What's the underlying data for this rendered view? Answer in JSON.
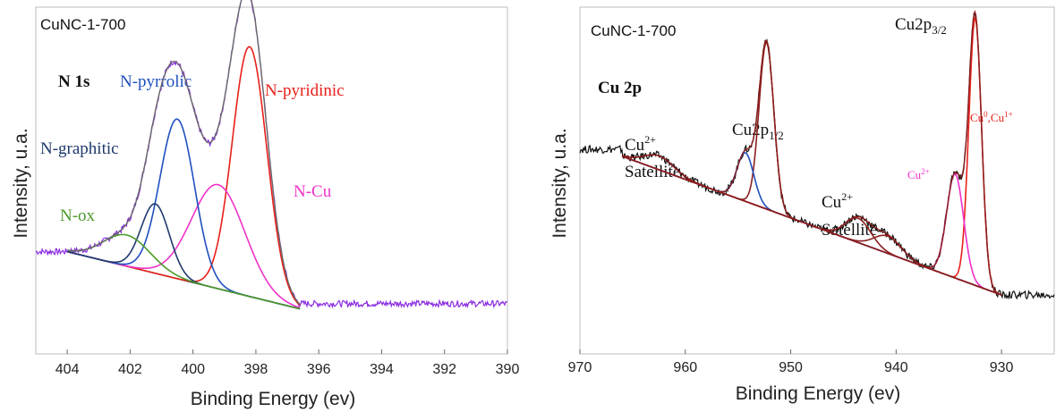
{
  "chart_data": [
    {
      "type": "line",
      "sample_label": "CuNC-1-700",
      "region_label": "N 1s",
      "xlabel": "Binding Energy (ev)",
      "ylabel": "Intensity, u.a.",
      "xlim": [
        405,
        390
      ],
      "ylim": [
        0,
        1
      ],
      "reversed_x": true,
      "grid": false,
      "x_ticks": [
        "404",
        "402",
        "400",
        "398",
        "396",
        "394",
        "392",
        "390"
      ],
      "peak_labels": [
        {
          "text": "N-pyrrolic",
          "color": "#1f4fbf"
        },
        {
          "text": "N-pyridinic",
          "color": "#e8201a"
        },
        {
          "text": "N-graphitic",
          "color": "#1f3a6e"
        },
        {
          "text": "N-Cu",
          "color": "#f032c8"
        },
        {
          "text": "N-ox",
          "color": "#4a9a2a"
        }
      ],
      "series": [
        {
          "name": "N-pyridinic",
          "color": "#e8201a",
          "kind": "peak",
          "center": 398.2,
          "height": 0.72,
          "width": 0.55
        },
        {
          "name": "N-Cu",
          "color": "#f032c8",
          "kind": "peak",
          "center": 399.2,
          "height": 0.3,
          "width": 0.85
        },
        {
          "name": "N-pyrrolic",
          "color": "#1f4fbf",
          "kind": "peak",
          "center": 400.5,
          "height": 0.46,
          "width": 0.55
        },
        {
          "name": "N-graphitic",
          "color": "#1f3a6e",
          "kind": "peak",
          "center": 401.2,
          "height": 0.2,
          "width": 0.45
        },
        {
          "name": "N-ox",
          "color": "#4a9a2a",
          "kind": "peak",
          "center": 402.1,
          "height": 0.09,
          "width": 0.75
        }
      ],
      "baseline": {
        "x": [
          404.0,
          396.6
        ],
        "y": [
          0.295,
          0.13
        ],
        "color": "#333333"
      },
      "raw_color": "#8a2be2",
      "envelope_color": "#6a6a6a",
      "raw_tail_level": 0.145
    },
    {
      "type": "line",
      "sample_label": "CuNC-1-700",
      "region_label": "Cu 2p",
      "xlabel": "Binding Energy (ev)",
      "ylabel": "Intensity, u.a.",
      "xlim": [
        970,
        925
      ],
      "ylim": [
        0,
        1
      ],
      "reversed_x": true,
      "grid": false,
      "x_ticks": [
        "970",
        "960",
        "950",
        "940",
        "930"
      ],
      "labels": [
        {
          "base": "Cu2p",
          "sub": "3/2",
          "color": "#111111"
        },
        {
          "base": "Cu2p",
          "sub": "1/2",
          "color": "#111111"
        },
        {
          "base": "Cu",
          "sup": "2+",
          "line2": "Satellite",
          "color": "#111111"
        },
        {
          "base": "Cu",
          "sup": "2+",
          "line2": "Satellite",
          "color": "#111111"
        },
        {
          "base": "Cu",
          "sup": "2+",
          "color": "#f032c8"
        },
        {
          "base": "Cu",
          "sup": "0",
          "mid": ",Cu",
          "sup2": "1+",
          "color": "#e8201a"
        }
      ],
      "series": [
        {
          "name": "Cu0,Cu1+",
          "color": "#e8201a",
          "kind": "peak",
          "center": 932.5,
          "height": 0.77,
          "width": 0.6
        },
        {
          "name": "Cu2+",
          "color": "#f032c8",
          "kind": "peak",
          "center": 934.4,
          "height": 0.3,
          "width": 0.8
        },
        {
          "name": "Cu2p1/2",
          "color": "#8b1e1e",
          "kind": "peak",
          "center": 952.3,
          "height": 0.48,
          "width": 0.7
        },
        {
          "name": "Cu2p1/2 shoulder",
          "color": "#1f4fbf",
          "kind": "peak",
          "center": 954.3,
          "height": 0.14,
          "width": 0.8
        },
        {
          "name": "satellite-1",
          "color": "#8b1e1e",
          "kind": "peak",
          "center": 943.6,
          "height": 0.07,
          "width": 1.2
        },
        {
          "name": "satellite-2",
          "color": "#8b1e1e",
          "kind": "peak",
          "center": 940.8,
          "height": 0.05,
          "width": 1.3
        },
        {
          "name": "satellite-3",
          "color": "#8b1e1e",
          "kind": "peak",
          "center": 962.5,
          "height": 0.04,
          "width": 1.4
        }
      ],
      "baseline": {
        "x": [
          966.0,
          930.0
        ],
        "y": [
          0.57,
          0.17
        ],
        "color": "#7a3cff"
      },
      "raw_color": "#111111",
      "envelope_color": "#8b1e1e"
    }
  ]
}
